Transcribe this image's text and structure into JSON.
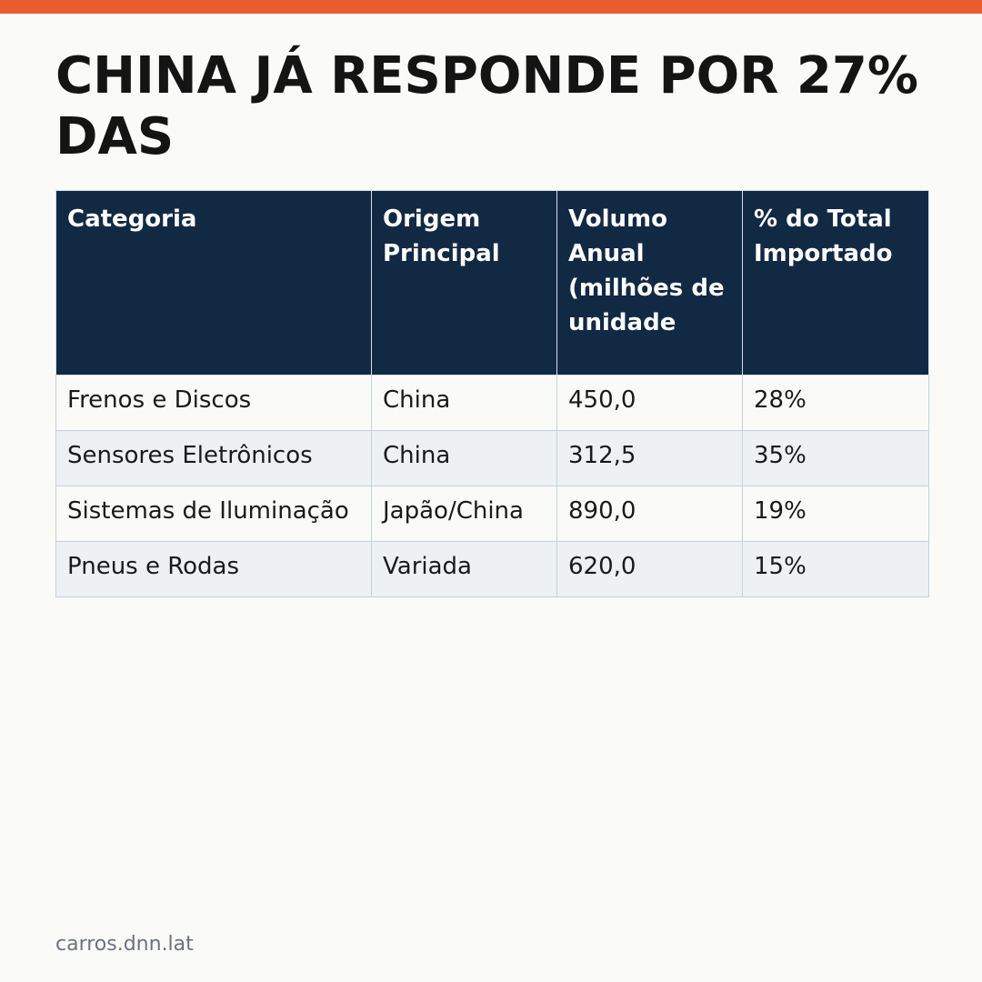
{
  "colors": {
    "accent_bar": "#e95b31",
    "header_background": "#122944",
    "header_text": "#ffffff",
    "row_alt_background": "#edf1f4",
    "page_background": "#fafaf8",
    "footer_text": "#6c7280"
  },
  "headline": {
    "line1": "CHINA JÁ RESPONDE POR 27%",
    "line2": "DAS"
  },
  "table": {
    "columns": [
      "Categoria",
      "Origem Principal",
      "Volumo Anual (milhões de unidade",
      "% do Total Importado"
    ],
    "rows": [
      [
        "Frenos e Discos",
        "China",
        "450,0",
        "28%"
      ],
      [
        "Sensores Eletrônicos",
        "China",
        "312,5",
        "35%"
      ],
      [
        "Sistemas de Iluminação",
        "Japão/China",
        "890,0",
        "19%"
      ],
      [
        "Pneus e Rodas",
        "Variada",
        "620,0",
        "15%"
      ]
    ]
  },
  "footer": {
    "source": "carros.dnn.lat"
  }
}
